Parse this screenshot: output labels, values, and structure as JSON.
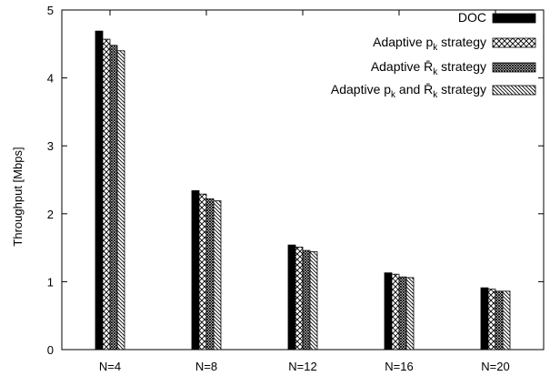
{
  "chart_data": {
    "type": "bar",
    "title": "",
    "xlabel": "",
    "ylabel": "Throughput [Mbps]",
    "ylim": [
      0,
      5
    ],
    "yticks": [
      "0",
      "1",
      "2",
      "3",
      "4",
      "5"
    ],
    "categories": [
      "N=4",
      "N=8",
      "N=12",
      "N=16",
      "N=20"
    ],
    "grid": false,
    "legend_position": "top-right",
    "series": [
      {
        "name": "DOC",
        "pattern": "solid-black",
        "values": [
          4.69,
          2.34,
          1.54,
          1.13,
          0.91
        ]
      },
      {
        "name": "Adaptive p_k strategy",
        "pattern": "crosshatch",
        "values": [
          4.57,
          2.29,
          1.51,
          1.11,
          0.89
        ]
      },
      {
        "name": "Adaptive R̄_k strategy",
        "pattern": "dense-crosshatch",
        "values": [
          4.48,
          2.22,
          1.46,
          1.07,
          0.86
        ]
      },
      {
        "name": "Adaptive p_k and R̄_k strategy",
        "pattern": "diagonal-lines",
        "values": [
          4.4,
          2.19,
          1.44,
          1.06,
          0.86
        ]
      }
    ],
    "legend": [
      {
        "prefix": "DOC",
        "sub1": "",
        "mid": "",
        "sub2": "",
        "suffix": ""
      },
      {
        "prefix": "Adaptive p",
        "sub1": "k",
        "mid": " strategy",
        "sub2": "",
        "suffix": ""
      },
      {
        "prefix": "Adaptive R̄",
        "sub1": "k",
        "mid": " strategy",
        "sub2": "",
        "suffix": ""
      },
      {
        "prefix": "Adaptive p",
        "sub1": "k",
        "mid": " and R̄",
        "sub2": "k",
        "suffix": " strategy"
      }
    ]
  }
}
